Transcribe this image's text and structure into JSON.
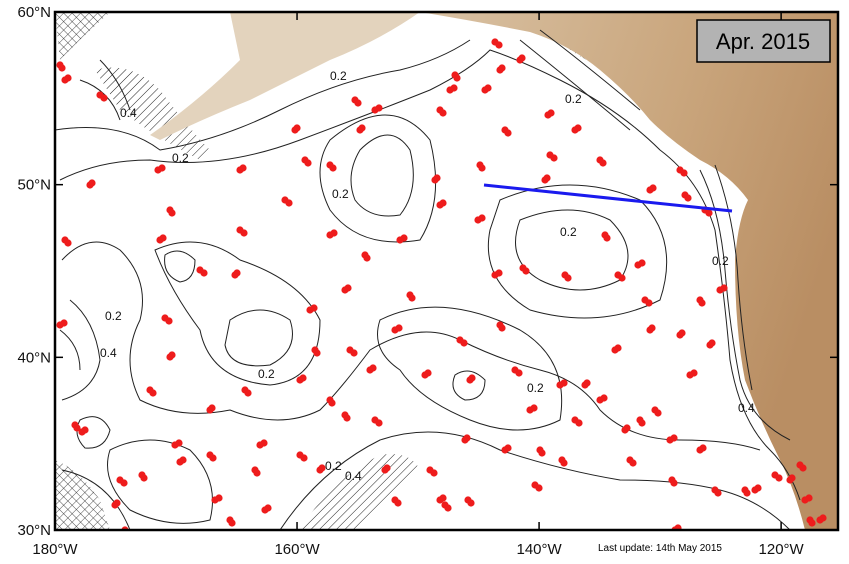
{
  "map": {
    "title": "Apr. 2015",
    "footnote": "Last update: 14th May 2015",
    "xlim": [
      -180,
      -115.3
    ],
    "ylim": [
      30,
      60
    ],
    "xticks": [
      {
        "value": -180,
        "label": "180°W"
      },
      {
        "value": -160,
        "label": "160°W"
      },
      {
        "value": -140,
        "label": "140°W"
      },
      {
        "value": -120,
        "label": "120°W"
      }
    ],
    "yticks": [
      {
        "value": 30,
        "label": "30°N"
      },
      {
        "value": 40,
        "label": "40°N"
      },
      {
        "value": 50,
        "label": "50°N"
      },
      {
        "value": 60,
        "label": "60°N"
      }
    ],
    "contour_labels": [
      "0.4",
      "0.2",
      "0.2",
      "0.2",
      "0.2",
      "0.2",
      "0.4",
      "0.2",
      "0.2",
      "0.2",
      "0.4",
      "0.2",
      "0.2",
      "0.4"
    ]
  }
}
